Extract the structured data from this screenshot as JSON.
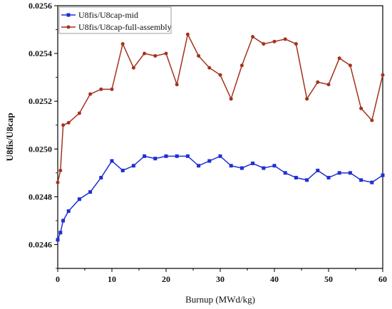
{
  "chart_data": {
    "type": "line",
    "xlabel": "Burnup (MWd/kg)",
    "ylabel": "U8fis/U8cap",
    "xlim": [
      0,
      60
    ],
    "ylim": [
      0.0245,
      0.0256
    ],
    "x_ticks": [
      "0",
      "10",
      "20",
      "30",
      "40",
      "50",
      "60"
    ],
    "y_ticks": [
      "0.0246",
      "0.0248",
      "0.0250",
      "0.0252",
      "0.0254",
      "0.0256"
    ],
    "legend_position": "top-left",
    "series": [
      {
        "name": "U8fis/U8cap-mid",
        "color": "#1f2fd6",
        "marker": "square",
        "x": [
          0,
          0.5,
          1,
          2,
          4,
          6,
          8,
          10,
          12,
          14,
          16,
          18,
          20,
          22,
          24,
          26,
          28,
          30,
          32,
          34,
          36,
          38,
          40,
          42,
          44,
          46,
          48,
          50,
          52,
          54,
          56,
          58,
          60
        ],
        "y": [
          0.02462,
          0.02465,
          0.0247,
          0.02474,
          0.02479,
          0.02482,
          0.02488,
          0.02495,
          0.02491,
          0.02493,
          0.02497,
          0.02496,
          0.02497,
          0.02497,
          0.02497,
          0.02493,
          0.02495,
          0.02497,
          0.02493,
          0.02492,
          0.02494,
          0.02492,
          0.02493,
          0.0249,
          0.02488,
          0.02487,
          0.02491,
          0.02488,
          0.0249,
          0.0249,
          0.02487,
          0.02486,
          0.02489
        ]
      },
      {
        "name": "U8fis/U8cap-full-assembly",
        "color": "#a3321e",
        "marker": "circle",
        "x": [
          0,
          0.5,
          1,
          2,
          4,
          6,
          8,
          10,
          12,
          14,
          16,
          18,
          20,
          22,
          24,
          26,
          28,
          30,
          32,
          34,
          36,
          38,
          40,
          42,
          44,
          46,
          48,
          50,
          52,
          54,
          56,
          58,
          60
        ],
        "y": [
          0.02486,
          0.02491,
          0.0251,
          0.02511,
          0.02515,
          0.02523,
          0.02525,
          0.02525,
          0.02544,
          0.02534,
          0.0254,
          0.02539,
          0.0254,
          0.02527,
          0.02548,
          0.02539,
          0.02534,
          0.02531,
          0.02521,
          0.02535,
          0.02547,
          0.02544,
          0.02545,
          0.02546,
          0.02544,
          0.02521,
          0.02528,
          0.02527,
          0.02538,
          0.02535,
          0.02517,
          0.02512,
          0.02531
        ]
      }
    ]
  }
}
